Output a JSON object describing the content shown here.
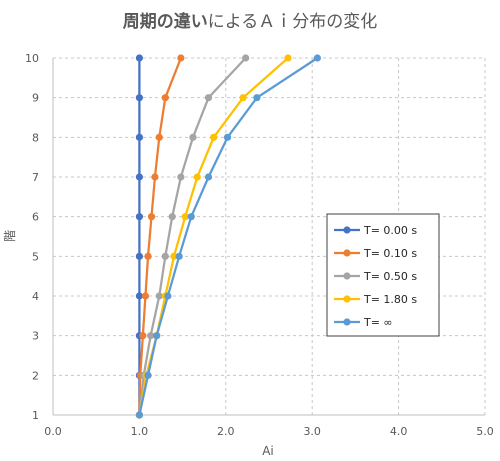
{
  "chart_data": {
    "type": "line",
    "title_bold": "周期の違い",
    "title_rest": "によるＡｉ分布の変化",
    "xlabel": "Ai",
    "ylabel": "階",
    "xlim": [
      0,
      5
    ],
    "ylim": [
      1,
      10
    ],
    "x_ticks": [
      "0.0",
      "1.0",
      "2.0",
      "3.0",
      "4.0",
      "5.0"
    ],
    "y_ticks": [
      "1",
      "2",
      "3",
      "4",
      "5",
      "6",
      "7",
      "8",
      "9",
      "10"
    ],
    "grid": true,
    "legend_position": "right",
    "y": [
      1,
      2,
      3,
      4,
      5,
      6,
      7,
      8,
      9,
      10
    ],
    "series": [
      {
        "name": "T= 0.00 s",
        "color": "#4472C4",
        "values": [
          1.0,
          1.0,
          1.0,
          1.0,
          1.0,
          1.0,
          1.0,
          1.0,
          1.0,
          1.0
        ]
      },
      {
        "name": "T= 0.10 s",
        "color": "#ED7D31",
        "values": [
          1.0,
          1.01,
          1.04,
          1.07,
          1.1,
          1.14,
          1.18,
          1.23,
          1.3,
          1.48
        ]
      },
      {
        "name": "T= 0.50 s",
        "color": "#A5A5A5",
        "values": [
          1.0,
          1.05,
          1.13,
          1.23,
          1.3,
          1.38,
          1.48,
          1.62,
          1.8,
          2.23
        ]
      },
      {
        "name": "T= 1.80 s",
        "color": "#FFC000",
        "values": [
          1.0,
          1.08,
          1.2,
          1.3,
          1.4,
          1.53,
          1.67,
          1.86,
          2.2,
          2.72
        ]
      },
      {
        "name": "T= ∞",
        "color": "#5B9BD5",
        "values": [
          1.0,
          1.1,
          1.2,
          1.33,
          1.46,
          1.6,
          1.8,
          2.02,
          2.36,
          3.06
        ]
      }
    ]
  }
}
